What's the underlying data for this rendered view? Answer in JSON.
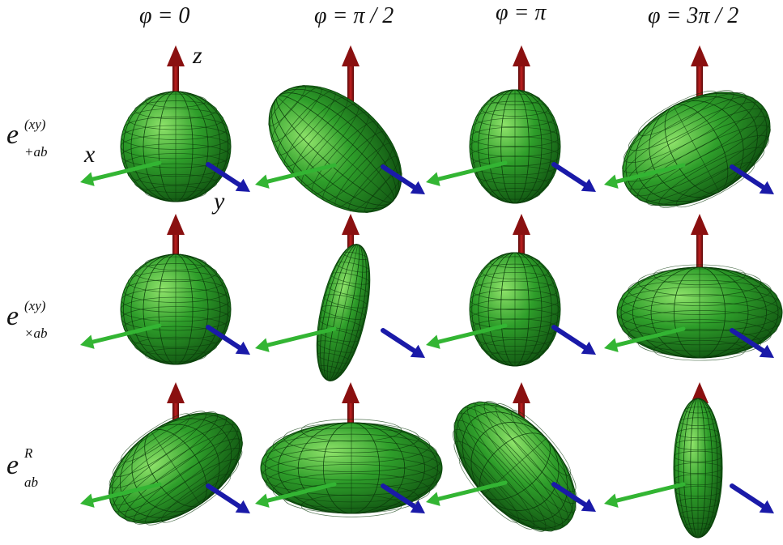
{
  "columns": [
    {
      "label": "φ = 0"
    },
    {
      "label": "φ = π / 2"
    },
    {
      "label": "φ = π"
    },
    {
      "label": "φ = 3π / 2"
    }
  ],
  "rows": [
    {
      "base": "e",
      "sup": "(xy)",
      "sub": "+ab"
    },
    {
      "base": "e",
      "sup": "(xy)",
      "sub": "×ab"
    },
    {
      "base": "e",
      "sup": "R",
      "sub": "ab"
    }
  ],
  "axes": {
    "x": "x",
    "y": "y",
    "z": "z"
  },
  "colors": {
    "surface": "#2e9e2a",
    "surface_dark": "#0f4f10",
    "surface_light": "#8fe36a",
    "mesh": "#0b3a0b",
    "z_arrow": "#8a1010",
    "x_arrow": "#33b533",
    "y_arrow": "#1a1aa8"
  }
}
